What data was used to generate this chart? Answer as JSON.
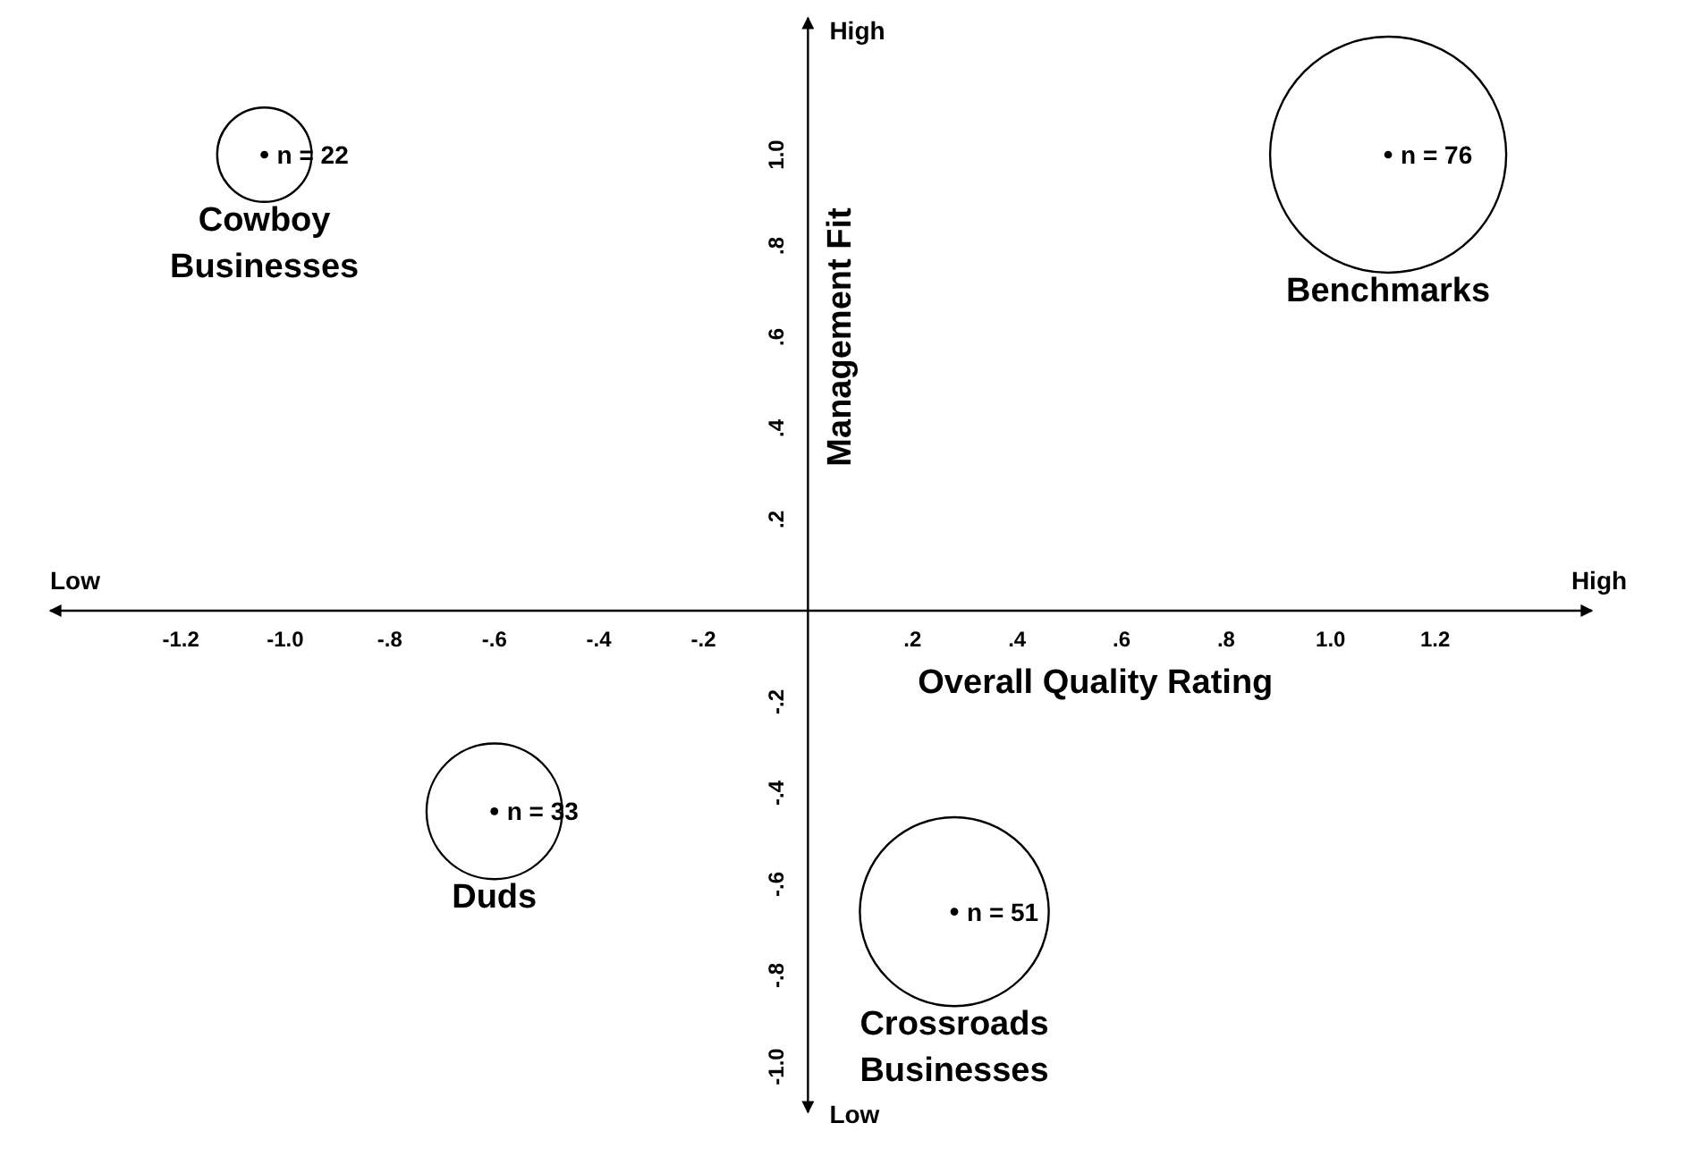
{
  "chart_data": {
    "type": "bubble",
    "xlabel": "Overall Quality Rating",
    "ylabel": "Management Fit",
    "xlim": [
      -1.45,
      1.5
    ],
    "ylim": [
      -1.1,
      1.3
    ],
    "xticks": [
      {
        "value": -1.2,
        "label": "-1.2"
      },
      {
        "value": -1.0,
        "label": "-1.0"
      },
      {
        "value": -0.8,
        "label": "-.8"
      },
      {
        "value": -0.6,
        "label": "-.6"
      },
      {
        "value": -0.4,
        "label": "-.4"
      },
      {
        "value": -0.2,
        "label": "-.2"
      },
      {
        "value": 0.2,
        "label": ".2"
      },
      {
        "value": 0.4,
        "label": ".4"
      },
      {
        "value": 0.6,
        "label": ".6"
      },
      {
        "value": 0.8,
        "label": ".8"
      },
      {
        "value": 1.0,
        "label": "1.0"
      },
      {
        "value": 1.2,
        "label": "1.2"
      }
    ],
    "yticks": [
      {
        "value": -1.0,
        "label": "-1.0"
      },
      {
        "value": -0.8,
        "label": "-.8"
      },
      {
        "value": -0.6,
        "label": "-.6"
      },
      {
        "value": -0.4,
        "label": "-.4"
      },
      {
        "value": -0.2,
        "label": "-.2"
      },
      {
        "value": 0.2,
        "label": ".2"
      },
      {
        "value": 0.4,
        "label": ".4"
      },
      {
        "value": 0.6,
        "label": ".6"
      },
      {
        "value": 0.8,
        "label": ".8"
      },
      {
        "value": 1.0,
        "label": "1.0"
      }
    ],
    "grid": false,
    "legend": false,
    "marker": "circle",
    "series": [
      {
        "name": "Cowboy Businesses",
        "color": "#000000",
        "x": [
          -1.04
        ],
        "values": [
          1.0
        ],
        "sizes": [
          0.16
        ]
      },
      {
        "name": "Benchmarks",
        "color": "#000000",
        "x": [
          1.11
        ],
        "values": [
          1.0
        ],
        "sizes": [
          1
        ]
      },
      {
        "name": "Duds",
        "color": "#000000",
        "x": [
          -0.6
        ],
        "values": [
          -0.44
        ],
        "sizes": [
          0.33
        ]
      },
      {
        "name": "Crossroads Businesses",
        "color": "#000000",
        "x": [
          0.28
        ],
        "values": [
          -0.66
        ],
        "sizes": [
          0.64
        ]
      }
    ],
    "annotations": [
      "Low",
      "High",
      "High",
      "Low",
      {
        "text": "n = 22",
        "x": -1.04,
        "y": 1.0
      },
      {
        "text": "n = 76",
        "x": 1.11,
        "y": 1.0
      },
      {
        "text": "n = 33",
        "x": -0.6,
        "y": -0.44
      },
      {
        "text": "n = 51",
        "x": 0.28,
        "y": -0.66
      }
    ]
  }
}
